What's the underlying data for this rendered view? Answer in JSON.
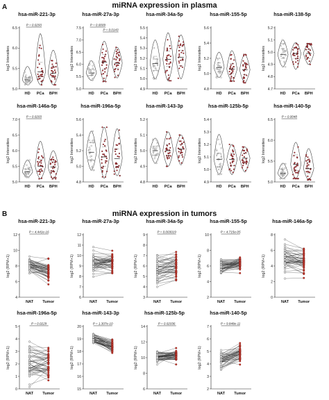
{
  "sections": [
    {
      "letter": "A",
      "title": "miRNA expression in plasma"
    },
    {
      "letter": "B",
      "title": "miRNA expression in tumors"
    }
  ],
  "colors": {
    "healthy": "#ffffff",
    "disease": "#b5262b",
    "outline": "#333333",
    "nat_point": "#ffffff",
    "tumor_point": "#c0392b"
  },
  "chart_data": [
    {
      "type": "violin",
      "section": "A",
      "title": "hsa-miR-221-3p",
      "ylabel": "log2 Intensities",
      "categories": [
        "HD",
        "PCa",
        "BPH"
      ],
      "yticks": [
        "5.0",
        "5.5",
        "6.0",
        "6.5"
      ],
      "ylim": [
        5.0,
        6.5
      ],
      "distributions": [
        {
          "median": 5.22,
          "q1": 5.18,
          "q3": 5.28,
          "min": 5.1,
          "max": 5.55
        },
        {
          "median": 5.42,
          "q1": 5.3,
          "q3": 5.65,
          "min": 5.1,
          "max": 6.35
        },
        {
          "median": 5.38,
          "q1": 5.28,
          "q3": 5.55,
          "min": 5.1,
          "max": 5.95
        }
      ],
      "comparisons": [
        {
          "from": 0,
          "to": 1,
          "label": "P = 0.0293"
        }
      ]
    },
    {
      "type": "violin",
      "section": "A",
      "title": "hsa-miR-27a-3p",
      "ylabel": "log2 Intensities",
      "categories": [
        "HD",
        "PCa",
        "BPH"
      ],
      "yticks": [
        "5.0",
        "5.5",
        "6.0",
        "6.5",
        "7.0",
        "7.5"
      ],
      "ylim": [
        5.0,
        7.5
      ],
      "distributions": [
        {
          "median": 5.65,
          "q1": 5.55,
          "q3": 5.8,
          "min": 5.35,
          "max": 6.15
        },
        {
          "median": 6.1,
          "q1": 5.8,
          "q3": 6.4,
          "min": 5.3,
          "max": 6.95
        },
        {
          "median": 6.05,
          "q1": 5.85,
          "q3": 6.25,
          "min": 5.45,
          "max": 6.7
        }
      ],
      "comparisons": [
        {
          "from": 0,
          "to": 1,
          "label": "P = 0.0009"
        },
        {
          "from": 1,
          "to": 2,
          "label": "P = 0.0143"
        }
      ]
    },
    {
      "type": "violin",
      "section": "A",
      "title": "hsa-miR-34a-5p",
      "ylabel": "log2 Intensities",
      "categories": [
        "HD",
        "PCa",
        "BPH"
      ],
      "yticks": [
        "4.9",
        "5.0",
        "5.1",
        "5.2",
        "5.3",
        "5.4",
        "5.5"
      ],
      "ylim": [
        4.9,
        5.5
      ],
      "distributions": [
        {
          "median": 5.15,
          "q1": 5.08,
          "q3": 5.22,
          "min": 5.0,
          "max": 5.38
        },
        {
          "median": 5.19,
          "q1": 5.12,
          "q3": 5.27,
          "min": 4.98,
          "max": 5.45
        },
        {
          "median": 5.21,
          "q1": 5.13,
          "q3": 5.28,
          "min": 5.0,
          "max": 5.43
        }
      ],
      "comparisons": []
    },
    {
      "type": "violin",
      "section": "A",
      "title": "hsa-miR-155-5p",
      "ylabel": "log2 Intensities",
      "categories": [
        "HD",
        "PCa",
        "BPH"
      ],
      "yticks": [
        "4.8",
        "5.0",
        "5.2",
        "5.4",
        "5.6"
      ],
      "ylim": [
        4.8,
        5.6
      ],
      "distributions": [
        {
          "median": 5.08,
          "q1": 5.02,
          "q3": 5.14,
          "min": 4.95,
          "max": 5.28
        },
        {
          "median": 5.06,
          "q1": 5.0,
          "q3": 5.13,
          "min": 4.9,
          "max": 5.3
        },
        {
          "median": 5.05,
          "q1": 4.99,
          "q3": 5.12,
          "min": 4.88,
          "max": 5.25
        }
      ],
      "comparisons": []
    },
    {
      "type": "violin",
      "section": "A",
      "title": "hsa-miR-138-5p",
      "ylabel": "log2 Intensities",
      "categories": [
        "HD",
        "PCa",
        "BPH"
      ],
      "yticks": [
        "4.7",
        "4.8",
        "4.9",
        "5.0",
        "5.1",
        "5.2"
      ],
      "ylim": [
        4.7,
        5.2
      ],
      "distributions": [
        {
          "median": 4.98,
          "q1": 4.95,
          "q3": 5.03,
          "min": 4.88,
          "max": 5.1
        },
        {
          "median": 4.99,
          "q1": 4.95,
          "q3": 5.03,
          "min": 4.86,
          "max": 5.08
        },
        {
          "median": 4.99,
          "q1": 4.95,
          "q3": 5.02,
          "min": 4.9,
          "max": 5.07
        }
      ],
      "comparisons": []
    },
    {
      "type": "violin",
      "section": "A",
      "title": "hsa-miR-146a-5p",
      "ylabel": "log2 Intensities",
      "categories": [
        "HD",
        "PCa",
        "BPH"
      ],
      "yticks": [
        "5.0",
        "5.5",
        "6.0",
        "6.5",
        "7.0"
      ],
      "ylim": [
        5.0,
        7.0
      ],
      "distributions": [
        {
          "median": 5.32,
          "q1": 5.25,
          "q3": 5.42,
          "min": 5.15,
          "max": 5.7
        },
        {
          "median": 5.5,
          "q1": 5.35,
          "q3": 5.72,
          "min": 5.1,
          "max": 6.3
        },
        {
          "median": 5.48,
          "q1": 5.35,
          "q3": 5.65,
          "min": 5.1,
          "max": 6.0
        }
      ],
      "comparisons": [
        {
          "from": 0,
          "to": 1,
          "label": "P = 0.0203"
        }
      ]
    },
    {
      "type": "violin",
      "section": "A",
      "title": "hsa-miR-196a-5p",
      "ylabel": "log2 Intensities",
      "categories": [
        "HD",
        "PCa",
        "BPH"
      ],
      "yticks": [
        "4.8",
        "5.0",
        "5.2",
        "5.4",
        "5.6"
      ],
      "ylim": [
        4.8,
        5.6
      ],
      "distributions": [
        {
          "median": 5.18,
          "q1": 5.08,
          "q3": 5.3,
          "min": 4.95,
          "max": 5.45
        },
        {
          "median": 5.12,
          "q1": 5.0,
          "q3": 5.25,
          "min": 4.85,
          "max": 5.5
        },
        {
          "median": 5.1,
          "q1": 5.0,
          "q3": 5.22,
          "min": 4.88,
          "max": 5.48
        }
      ],
      "comparisons": []
    },
    {
      "type": "violin",
      "section": "A",
      "title": "hsa-miR-143-3p",
      "ylabel": "log2 Intensities",
      "categories": [
        "HD",
        "PCa",
        "BPH"
      ],
      "yticks": [
        "4.8",
        "4.9",
        "5.0",
        "5.1",
        "5.2"
      ],
      "ylim": [
        4.8,
        5.2
      ],
      "distributions": [
        {
          "median": 5.0,
          "q1": 4.97,
          "q3": 5.03,
          "min": 4.92,
          "max": 5.08
        },
        {
          "median": 5.0,
          "q1": 4.97,
          "q3": 5.04,
          "min": 4.9,
          "max": 5.12
        },
        {
          "median": 5.01,
          "q1": 4.97,
          "q3": 5.04,
          "min": 4.91,
          "max": 5.1
        }
      ],
      "comparisons": []
    },
    {
      "type": "violin",
      "section": "A",
      "title": "hsa-miR-125b-5p",
      "ylabel": "log2 Intensities",
      "categories": [
        "HD",
        "PCa",
        "BPH"
      ],
      "yticks": [
        "4.9",
        "5.0",
        "5.1",
        "5.2",
        "5.3",
        "5.4"
      ],
      "ylim": [
        4.9,
        5.4
      ],
      "distributions": [
        {
          "median": 5.08,
          "q1": 5.02,
          "q3": 5.13,
          "min": 4.96,
          "max": 5.28
        },
        {
          "median": 5.08,
          "q1": 5.03,
          "q3": 5.13,
          "min": 4.96,
          "max": 5.2
        },
        {
          "median": 5.09,
          "q1": 5.05,
          "q3": 5.13,
          "min": 4.98,
          "max": 5.18
        }
      ],
      "comparisons": []
    },
    {
      "type": "violin",
      "section": "A",
      "title": "hsa-miR-140-5p",
      "ylabel": "log2 Intensities",
      "categories": [
        "HD",
        "PCa",
        "BPH"
      ],
      "yticks": [
        "5.0",
        "5.5",
        "6.0",
        "6.5"
      ],
      "ylim": [
        5.0,
        6.5
      ],
      "distributions": [
        {
          "median": 5.2,
          "q1": 5.15,
          "q3": 5.3,
          "min": 5.08,
          "max": 5.45
        },
        {
          "median": 5.42,
          "q1": 5.28,
          "q3": 5.65,
          "min": 5.08,
          "max": 5.95
        },
        {
          "median": 5.32,
          "q1": 5.2,
          "q3": 5.48,
          "min": 5.05,
          "max": 5.8
        }
      ],
      "comparisons": [
        {
          "from": 0,
          "to": 1,
          "label": "P = 0.0048"
        }
      ]
    },
    {
      "type": "paired",
      "section": "B",
      "title": "hsa-miR-221-3p",
      "ylabel": "log2 (RPM+1)",
      "categories": [
        "NAT",
        "Tumor"
      ],
      "yticks": [
        "4",
        "6",
        "8",
        "10",
        "12"
      ],
      "ylim": [
        4,
        12
      ],
      "nat": {
        "mean": 8.1,
        "sd": 0.6
      },
      "tumor": {
        "mean": 7.3,
        "sd": 0.7
      },
      "label": "P = 4.441e-16"
    },
    {
      "type": "paired",
      "section": "B",
      "title": "hsa-miR-27a-3p",
      "ylabel": "log2 (RPM+1)",
      "categories": [
        "NAT",
        "Tumor"
      ],
      "yticks": [
        "6",
        "7",
        "8",
        "9",
        "10",
        "11",
        "12"
      ],
      "ylim": [
        6,
        12
      ],
      "nat": {
        "mean": 9.2,
        "sd": 0.55
      },
      "tumor": {
        "mean": 9.2,
        "sd": 0.55
      },
      "label": ""
    },
    {
      "type": "paired",
      "section": "B",
      "title": "hsa-miR-34a-5p",
      "ylabel": "log2 (RPM+1)",
      "categories": [
        "NAT",
        "Tumor"
      ],
      "yticks": [
        "3",
        "4",
        "5",
        "6",
        "7",
        "8",
        "9"
      ],
      "ylim": [
        3,
        9
      ],
      "nat": {
        "mean": 5.6,
        "sd": 0.6
      },
      "tumor": {
        "mean": 6.0,
        "sd": 0.7
      },
      "label": "P = 0.003019"
    },
    {
      "type": "paired",
      "section": "B",
      "title": "hsa-miR-155-5p",
      "ylabel": "log2 (RPM+1)",
      "categories": [
        "NAT",
        "Tumor"
      ],
      "yticks": [
        "2",
        "4",
        "6",
        "8",
        "10"
      ],
      "ylim": [
        2,
        10
      ],
      "nat": {
        "mean": 5.9,
        "sd": 0.6
      },
      "tumor": {
        "mean": 6.2,
        "sd": 0.6
      },
      "label": "P = 4.715e-05"
    },
    {
      "type": "paired",
      "section": "B",
      "title": "hsa-miR-146a-5p",
      "ylabel": "log2 (RPM+1)",
      "categories": [
        "NAT",
        "Tumor"
      ],
      "yticks": [
        "0",
        "2",
        "4",
        "6",
        "8"
      ],
      "ylim": [
        0,
        8
      ],
      "nat": {
        "mean": 4.8,
        "sd": 0.9
      },
      "tumor": {
        "mean": 4.6,
        "sd": 0.9
      },
      "label": ""
    },
    {
      "type": "paired",
      "section": "B",
      "title": "hsa-miR-196a-5p",
      "ylabel": "log2 (RPM+1)",
      "categories": [
        "NAT",
        "Tumor"
      ],
      "yticks": [
        "0",
        "1",
        "2",
        "3",
        "4",
        "5"
      ],
      "ylim": [
        0,
        5
      ],
      "nat": {
        "mean": 2.2,
        "sd": 0.8
      },
      "tumor": {
        "mean": 2.0,
        "sd": 0.8
      },
      "label": "P = 0.0229"
    },
    {
      "type": "paired",
      "section": "B",
      "title": "hsa-miR-143-3p",
      "ylabel": "log2 (RPM+1)",
      "categories": [
        "NAT",
        "Tumor"
      ],
      "yticks": [
        "15",
        "16",
        "17",
        "18",
        "19",
        "20"
      ],
      "ylim": [
        15,
        20
      ],
      "nat": {
        "mean": 19.0,
        "sd": 0.22
      },
      "tumor": {
        "mean": 18.4,
        "sd": 0.3
      },
      "label": "P = 1.307e-10"
    },
    {
      "type": "paired",
      "section": "B",
      "title": "hsa-miR-125b-5p",
      "ylabel": "log2 (RPM+1)",
      "categories": [
        "NAT",
        "Tumor"
      ],
      "yticks": [
        "6",
        "8",
        "10",
        "12",
        "14"
      ],
      "ylim": [
        6,
        14
      ],
      "nat": {
        "mean": 10.1,
        "sd": 0.35
      },
      "tumor": {
        "mean": 10.3,
        "sd": 0.45
      },
      "label": "P = 0.02036"
    },
    {
      "type": "paired",
      "section": "B",
      "title": "hsa-miR-140-5p",
      "ylabel": "log2 (RPM+1)",
      "categories": [
        "NAT",
        "Tumor"
      ],
      "yticks": [
        "2",
        "3",
        "4",
        "5",
        "6",
        "7"
      ],
      "ylim": [
        2,
        7
      ],
      "nat": {
        "mean": 4.4,
        "sd": 0.4
      },
      "tumor": {
        "mean": 4.9,
        "sd": 0.4
      },
      "label": "P = 9.848e-11"
    }
  ]
}
